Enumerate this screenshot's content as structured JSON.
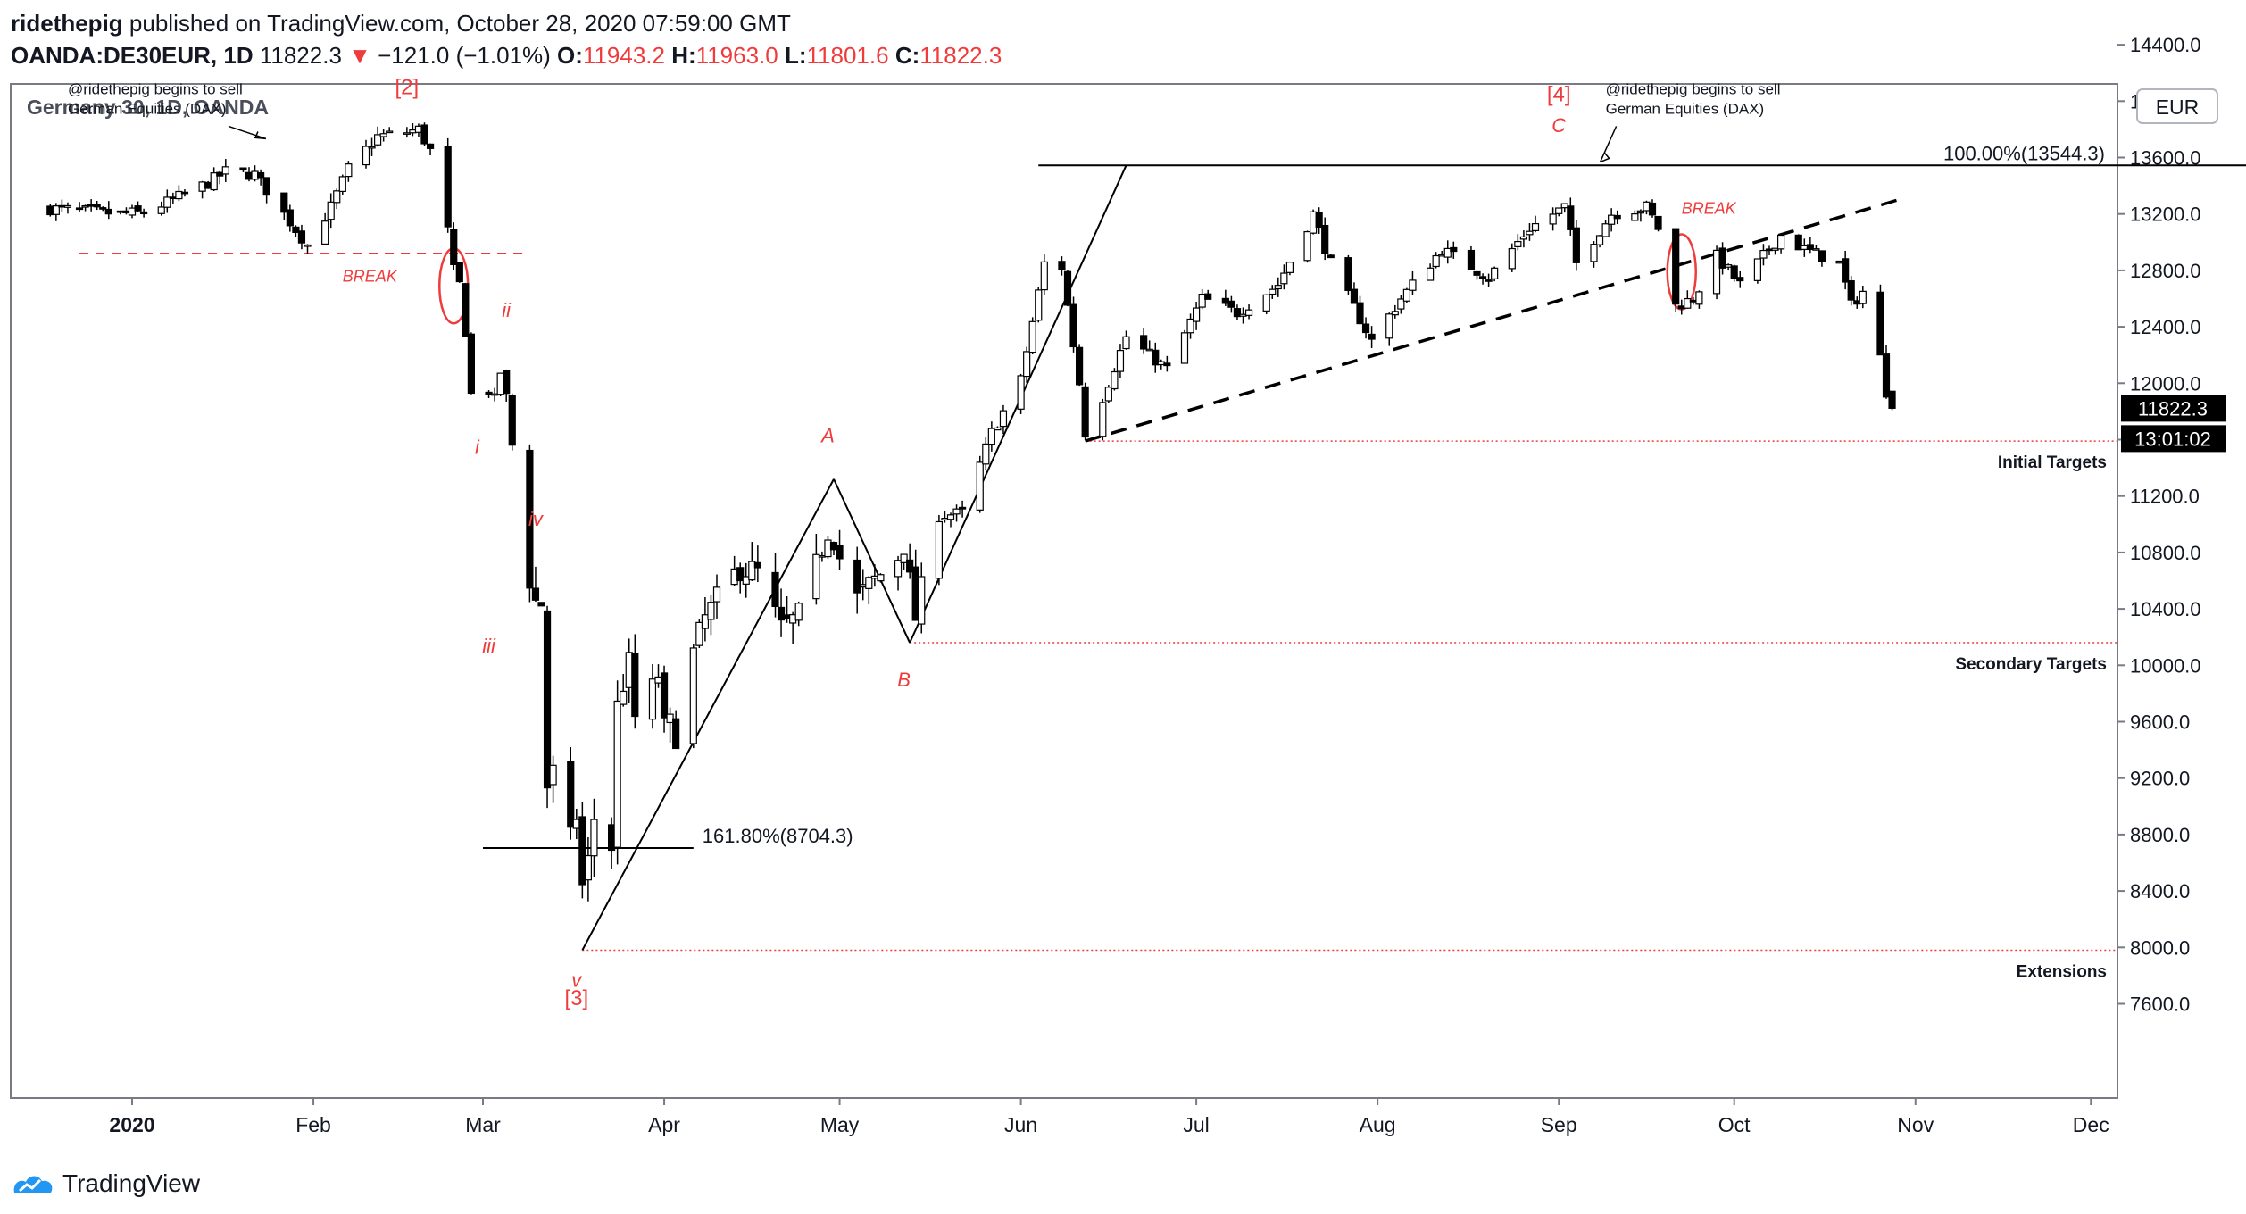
{
  "header": {
    "author": "ridethepig",
    "published_text": "published on TradingView.com, October 28, 2020 07:59:00 GMT",
    "symbol": "OANDA:DE30EUR, 1D",
    "last": "11822.3",
    "change_arrow": "▼",
    "change": "−121.0 (−1.01%)",
    "o_label": "O:",
    "o_value": "11943.2",
    "h_label": "H:",
    "h_value": "11963.0",
    "l_label": "L:",
    "l_value": "11801.6",
    "c_label": "C:",
    "c_value": "11822.3"
  },
  "chart_title": "Germany 30, 1D, OANDA",
  "currency_button": "EUR",
  "footer": {
    "brand": "TradingView",
    "logo_icon": "tradingview-logo-icon"
  },
  "colors": {
    "up": "#ffffff",
    "down": "#000000",
    "annotation_red": "#ef3b3b",
    "grid_axis": "#787b86"
  },
  "chart_data": {
    "type": "candlestick",
    "title": "Germany 30, 1D, OANDA",
    "ylim": [
      7450,
      14450
    ],
    "y_ticks": [
      "7600.0",
      "8000.0",
      "8400.0",
      "8800.0",
      "9200.0",
      "9600.0",
      "10000.0",
      "10400.0",
      "10800.0",
      "11200.0",
      "11600.0",
      "12000.0",
      "12400.0",
      "12800.0",
      "13200.0",
      "13600.0",
      "14000.0",
      "14400.0"
    ],
    "x_ticks": [
      {
        "label": "2020",
        "x": "2020-01-01",
        "bold": true
      },
      {
        "label": "Feb",
        "x": "2020-02-01"
      },
      {
        "label": "Mar",
        "x": "2020-03-01"
      },
      {
        "label": "Apr",
        "x": "2020-04-01"
      },
      {
        "label": "May",
        "x": "2020-05-01"
      },
      {
        "label": "Jun",
        "x": "2020-06-01"
      },
      {
        "label": "Jul",
        "x": "2020-07-01"
      },
      {
        "label": "Aug",
        "x": "2020-08-01"
      },
      {
        "label": "Sep",
        "x": "2020-09-01"
      },
      {
        "label": "Oct",
        "x": "2020-10-01"
      },
      {
        "label": "Nov",
        "x": "2020-11-01"
      },
      {
        "label": "Dec",
        "x": "2020-12-01"
      }
    ],
    "last_price_label": "11822.3",
    "countdown_label": "13:01:02",
    "price_path": [
      [
        "2019-12-18",
        13240
      ],
      [
        "2019-12-24",
        13220
      ],
      [
        "2019-12-30",
        13200
      ],
      [
        "2020-01-03",
        13210
      ],
      [
        "2020-01-08",
        13300
      ],
      [
        "2020-01-14",
        13420
      ],
      [
        "2020-01-17",
        13500
      ],
      [
        "2020-01-22",
        13480
      ],
      [
        "2020-01-27",
        13200
      ],
      [
        "2020-01-31",
        12980
      ],
      [
        "2020-02-04",
        13250
      ],
      [
        "2020-02-07",
        13520
      ],
      [
        "2020-02-12",
        13750
      ],
      [
        "2020-02-17",
        13780
      ],
      [
        "2020-02-19",
        13800
      ],
      [
        "2020-02-21",
        13650
      ],
      [
        "2020-02-24",
        13080
      ],
      [
        "2020-02-25",
        12800
      ],
      [
        "2020-02-26",
        12700
      ],
      [
        "2020-02-27",
        12370
      ],
      [
        "2020-02-28",
        11920
      ],
      [
        "2020-03-02",
        11950
      ],
      [
        "2020-03-03",
        11880
      ],
      [
        "2020-03-04",
        12080
      ],
      [
        "2020-03-05",
        11900
      ],
      [
        "2020-03-06",
        11560
      ],
      [
        "2020-03-09",
        10620
      ],
      [
        "2020-03-10",
        10450
      ],
      [
        "2020-03-11",
        10440
      ],
      [
        "2020-03-12",
        9150
      ],
      [
        "2020-03-13",
        9230
      ],
      [
        "2020-03-16",
        8750
      ],
      [
        "2020-03-17",
        8940
      ],
      [
        "2020-03-18",
        8430
      ],
      [
        "2020-03-19",
        8600
      ],
      [
        "2020-03-20",
        8920
      ],
      [
        "2020-03-23",
        8720
      ],
      [
        "2020-03-24",
        9700
      ],
      [
        "2020-03-25",
        9880
      ],
      [
        "2020-03-26",
        10000
      ],
      [
        "2020-03-27",
        9630
      ],
      [
        "2020-03-30",
        9820
      ],
      [
        "2020-03-31",
        9940
      ],
      [
        "2020-04-01",
        9540
      ],
      [
        "2020-04-02",
        9570
      ],
      [
        "2020-04-03",
        9520
      ],
      [
        "2020-04-06",
        10080
      ],
      [
        "2020-04-08",
        10330
      ],
      [
        "2020-04-14",
        10700
      ],
      [
        "2020-04-17",
        10650
      ],
      [
        "2020-04-21",
        10250
      ],
      [
        "2020-04-24",
        10340
      ],
      [
        "2020-04-29",
        10920
      ],
      [
        "2020-04-30",
        10860
      ],
      [
        "2020-05-04",
        10470
      ],
      [
        "2020-05-07",
        10600
      ],
      [
        "2020-05-12",
        10820
      ],
      [
        "2020-05-14",
        10340
      ],
      [
        "2020-05-18",
        11060
      ],
      [
        "2020-05-22",
        11080
      ],
      [
        "2020-05-27",
        11650
      ],
      [
        "2020-06-01",
        12020
      ],
      [
        "2020-06-05",
        12850
      ],
      [
        "2020-06-08",
        12820
      ],
      [
        "2020-06-11",
        12000
      ],
      [
        "2020-06-12",
        11650
      ],
      [
        "2020-06-15",
        11900
      ],
      [
        "2020-06-19",
        12330
      ],
      [
        "2020-06-26",
        12100
      ],
      [
        "2020-07-02",
        12600
      ],
      [
        "2020-07-08",
        12500
      ],
      [
        "2020-07-15",
        12700
      ],
      [
        "2020-07-21",
        13200
      ],
      [
        "2020-07-24",
        12850
      ],
      [
        "2020-07-31",
        12300
      ],
      [
        "2020-08-05",
        12600
      ],
      [
        "2020-08-12",
        12950
      ],
      [
        "2020-08-20",
        12750
      ],
      [
        "2020-08-27",
        13100
      ],
      [
        "2020-09-02",
        13250
      ],
      [
        "2020-09-04",
        12850
      ],
      [
        "2020-09-10",
        13200
      ],
      [
        "2020-09-16",
        13250
      ],
      [
        "2020-09-18",
        13100
      ],
      [
        "2020-09-21",
        12550
      ],
      [
        "2020-09-24",
        12600
      ],
      [
        "2020-09-28",
        12900
      ],
      [
        "2020-10-02",
        12700
      ],
      [
        "2020-10-09",
        13050
      ],
      [
        "2020-10-13",
        12950
      ],
      [
        "2020-10-16",
        12900
      ],
      [
        "2020-10-19",
        12850
      ],
      [
        "2020-10-21",
        12550
      ],
      [
        "2020-10-23",
        12650
      ],
      [
        "2020-10-26",
        12180
      ],
      [
        "2020-10-27",
        11943.2
      ],
      [
        "2020-10-28",
        11822.3
      ]
    ],
    "horizontal_levels": [
      {
        "label": "Initial Targets",
        "price": 11590,
        "from": "2020-06-12"
      },
      {
        "label": "Secondary Targets",
        "price": 10160,
        "from": "2020-05-13"
      },
      {
        "label": "Extensions",
        "price": 7980,
        "from": "2020-03-18"
      }
    ],
    "fib_levels": [
      {
        "label": "100.00%(13544.3)",
        "price": 13544.3,
        "from": "2020-06-04",
        "to": "2020-12-31"
      },
      {
        "label": "161.80%(8704.3)",
        "price": 8704.3,
        "from": "2020-03-01",
        "to": "2020-04-06"
      }
    ],
    "break_lines": [
      {
        "price": 12920,
        "from": "2019-12-23",
        "to": "2020-02-28",
        "label": "BREAK"
      }
    ],
    "trendlines": [
      {
        "from": [
          "2020-03-18",
          7980
        ],
        "to": [
          "2020-04-30",
          11320
        ]
      },
      {
        "from": [
          "2020-04-30",
          11320
        ],
        "to": [
          "2020-05-13",
          10160
        ]
      },
      {
        "from": [
          "2020-05-13",
          10160
        ],
        "to": [
          "2020-06-19",
          13544
        ]
      }
    ],
    "dashed_trendline": {
      "from": [
        "2020-06-12",
        11590
      ],
      "to": [
        "2020-10-29",
        13300
      ]
    },
    "wave_labels": [
      {
        "text": "[2]",
        "date": "2020-02-17",
        "price": 14050
      },
      {
        "text": "i",
        "date": "2020-02-29",
        "price": 11500
      },
      {
        "text": "ii",
        "date": "2020-03-05",
        "price": 12470
      },
      {
        "text": "iii",
        "date": "2020-03-02",
        "price": 10090
      },
      {
        "text": "iv",
        "date": "2020-03-10",
        "price": 10990
      },
      {
        "text": "v",
        "date": "2020-03-17",
        "price": 7720
      },
      {
        "text": "[3]",
        "date": "2020-03-17",
        "price": 7590
      },
      {
        "text": "A",
        "date": "2020-04-29",
        "price": 11580
      },
      {
        "text": "B",
        "date": "2020-05-12",
        "price": 9850
      },
      {
        "text": "[4]",
        "date": "2020-09-01",
        "price": 14000
      },
      {
        "text": "C",
        "date": "2020-09-01",
        "price": 13780
      }
    ],
    "notes": [
      {
        "lines": [
          "@ridethepig begins to sell",
          "German Equities (DAX)"
        ],
        "date": "2019-12-21",
        "price": 14050
      },
      {
        "lines": [
          "@ridethepig begins to sell",
          "German Equities (DAX)"
        ],
        "date": "2020-09-09",
        "price": 14050
      }
    ],
    "break_labels": [
      {
        "text": "BREAK",
        "date": "2020-02-06",
        "price": 12720
      },
      {
        "text": "BREAK",
        "date": "2020-09-22",
        "price": 13200
      }
    ],
    "circles": [
      {
        "date": "2020-02-25",
        "price": 12690
      },
      {
        "date": "2020-09-22",
        "price": 12790
      }
    ]
  }
}
